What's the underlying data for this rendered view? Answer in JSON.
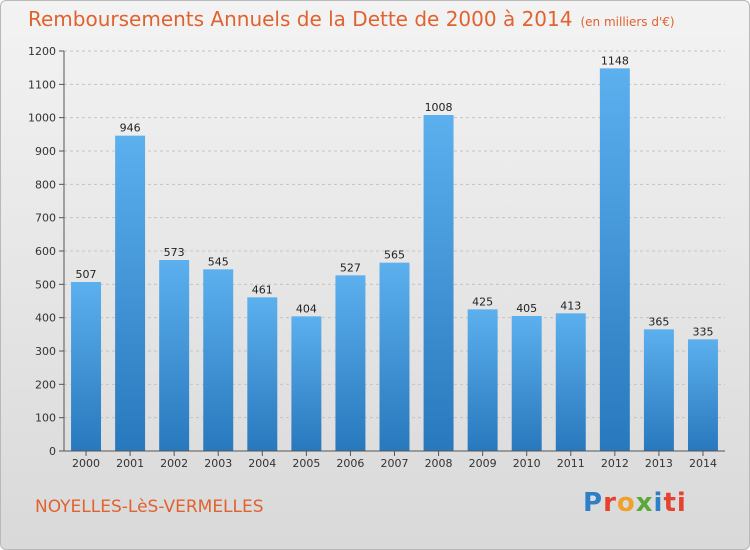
{
  "header": {
    "title": "Remboursements Annuels de la Dette de 2000 à 2014",
    "unit": "(en milliers d'€)"
  },
  "footer": {
    "commune": "NOYELLES-LèS-VERMELLES",
    "logo": [
      "P",
      "r",
      "o",
      "x",
      "i",
      "ti"
    ]
  },
  "colors": {
    "title": "#e0622f",
    "bar_top": "#5cb0ee",
    "bar_bottom": "#2878bd"
  },
  "chart_data": {
    "type": "bar",
    "title": "Remboursements Annuels de la Dette de 2000 à 2014",
    "xlabel": "",
    "ylabel": "",
    "categories": [
      "2000",
      "2001",
      "2002",
      "2003",
      "2004",
      "2005",
      "2006",
      "2007",
      "2008",
      "2009",
      "2010",
      "2011",
      "2012",
      "2013",
      "2014"
    ],
    "values": [
      507,
      946,
      573,
      545,
      461,
      404,
      527,
      565,
      1008,
      425,
      405,
      413,
      1148,
      365,
      335
    ],
    "ylim": [
      0,
      1200
    ],
    "yticks": [
      0,
      100,
      200,
      300,
      400,
      500,
      600,
      700,
      800,
      900,
      1000,
      1100,
      1200
    ],
    "grid": true,
    "legend": "none"
  }
}
